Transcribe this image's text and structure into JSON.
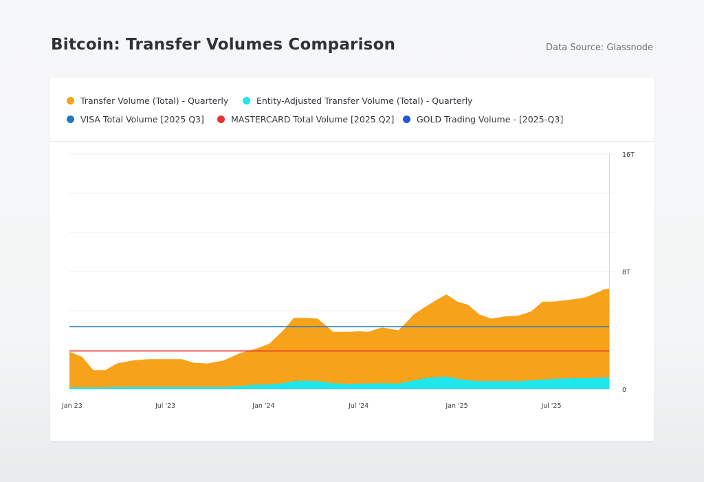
{
  "header": {
    "title": "Bitcoin: Transfer Volumes Comparison",
    "data_source": "Data Source: Glassnode"
  },
  "chart_data": {
    "type": "area",
    "title": "Bitcoin: Transfer Volumes Comparison",
    "xlabel": "",
    "ylabel": "",
    "x_ticks": [
      "Jan 23",
      "Jul '23",
      "Jan '24",
      "Jul '24",
      "Jan '25",
      "Jul '25"
    ],
    "y_ticks": [
      "0",
      "8T",
      "16T"
    ],
    "ylim": [
      0,
      16
    ],
    "y_unit": "T",
    "xlim": [
      "2023-01-01",
      "2025-10-31"
    ],
    "grid": "horizontal",
    "legend_position": "top",
    "x": [
      "2023-01-01",
      "2023-01-25",
      "2023-02-15",
      "2023-03-10",
      "2023-04-01",
      "2023-05-01",
      "2023-06-01",
      "2023-07-01",
      "2023-08-01",
      "2023-08-25",
      "2023-09-20",
      "2023-10-20",
      "2023-11-20",
      "2023-12-20",
      "2024-01-15",
      "2024-02-10",
      "2024-03-01",
      "2024-03-20",
      "2024-04-15",
      "2024-05-15",
      "2024-06-15",
      "2024-07-01",
      "2024-07-20",
      "2024-08-15",
      "2024-09-15",
      "2024-10-15",
      "2024-11-05",
      "2024-11-25",
      "2024-12-15",
      "2025-01-05",
      "2025-01-25",
      "2025-02-15",
      "2025-03-10",
      "2025-04-05",
      "2025-04-30",
      "2025-05-25",
      "2025-06-15",
      "2025-07-05",
      "2025-07-15",
      "2025-08-10",
      "2025-09-05",
      "2025-10-01",
      "2025-10-10",
      "2025-10-20"
    ],
    "series": [
      {
        "name": "Transfer Volume (Total) - Quarterly",
        "color": "#f7a21b",
        "values": [
          2.55,
          2.2,
          1.3,
          1.3,
          1.75,
          1.95,
          2.05,
          2.05,
          2.05,
          1.8,
          1.75,
          1.95,
          2.45,
          2.75,
          3.1,
          4.0,
          4.85,
          4.85,
          4.8,
          3.9,
          3.9,
          3.95,
          3.9,
          4.2,
          4.0,
          5.1,
          5.6,
          6.05,
          6.45,
          5.95,
          5.75,
          5.1,
          4.8,
          4.95,
          5.0,
          5.3,
          5.95,
          5.95,
          6.0,
          6.1,
          6.25,
          6.65,
          6.8,
          6.85
        ]
      },
      {
        "name": "Entity-Adjusted Transfer Volume (Total) - Quarterly",
        "color": "#1ee6ec",
        "values": [
          0.12,
          0.12,
          0.12,
          0.12,
          0.15,
          0.15,
          0.15,
          0.15,
          0.15,
          0.15,
          0.15,
          0.15,
          0.22,
          0.3,
          0.32,
          0.4,
          0.55,
          0.58,
          0.55,
          0.4,
          0.35,
          0.38,
          0.38,
          0.4,
          0.38,
          0.6,
          0.75,
          0.82,
          0.85,
          0.7,
          0.6,
          0.55,
          0.55,
          0.55,
          0.55,
          0.6,
          0.65,
          0.7,
          0.72,
          0.75,
          0.75,
          0.78,
          0.78,
          0.78
        ]
      },
      {
        "name": "VISA Total Volume [2025 Q3]",
        "color": "#2378c2",
        "constant": 4.25
      },
      {
        "name": "MASTERCARD Total Volume [2025 Q2]",
        "color": "#e8312a",
        "constant": 2.6
      },
      {
        "name": "GOLD Trading Volume - [2025-Q3]",
        "color": "#2357d6",
        "constant": null
      }
    ]
  }
}
